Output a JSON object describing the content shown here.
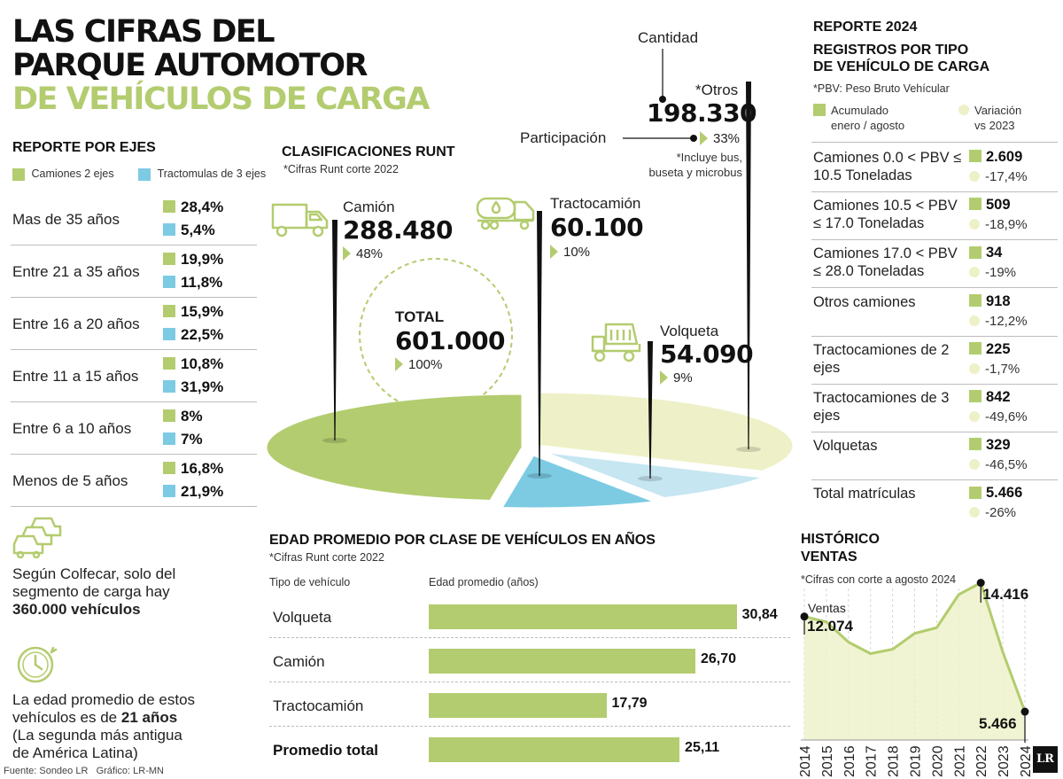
{
  "title": {
    "line1": "LAS CIFRAS DEL",
    "line2": "PARQUE AUTOMOTOR",
    "line3": "DE VEHÍCULOS DE CARGA"
  },
  "colors": {
    "green": "#b3cc6f",
    "blue": "#7ccbe3",
    "light_green": "#eef1c7",
    "light_blue": "#c6e6f1"
  },
  "report_axles": {
    "title": "REPORTE POR EJES",
    "legend": [
      "Camiones 2 ejes",
      "Tractomulas de 3 ejes"
    ],
    "rows": [
      {
        "label": "Mas de 35 años",
        "a": "28,4%",
        "b": "5,4%"
      },
      {
        "label": "Entre 21 a 35 años",
        "a": "19,9%",
        "b": "11,8%"
      },
      {
        "label": "Entre 16 a 20 años",
        "a": "15,9%",
        "b": "22,5%"
      },
      {
        "label": "Entre 11 a 15 años",
        "a": "10,8%",
        "b": "31,9%"
      },
      {
        "label": "Entre 6 a 10 años",
        "a": "8%",
        "b": "7%"
      },
      {
        "label": "Menos de 5 años",
        "a": "16,8%",
        "b": "21,9%"
      }
    ]
  },
  "facts": {
    "colfecar_1": "Según Colfecar, solo del",
    "colfecar_2": "segmento de carga hay",
    "colfecar_3": "360.000 vehículos",
    "age_1": "La edad promedio de estos",
    "age_2": "vehículos es de",
    "age_3": "21 años",
    "age_4": "(La segunda más antigua",
    "age_5": "de América Latina)",
    "icon_cars": "cars-icon",
    "icon_clock": "clock-icon"
  },
  "source": "Fuente: Sondeo LR   Gráfico: LR-MN",
  "runt": {
    "title": "CLASIFICACIONES RUNT",
    "note": "*Cifras Runt corte 2022",
    "total_label": "TOTAL",
    "total_value": "601.000",
    "total_pct": "100%",
    "cantidad_label": "Cantidad",
    "participacion_label": "Participación",
    "otros_note_1": "*Incluye bus,",
    "otros_note_2": "buseta y microbus"
  },
  "registry": {
    "title_1": "REPORTE 2024",
    "title_2": "REGISTROS POR TIPO",
    "title_3": "DE VEHÍCULO DE CARGA",
    "note": "*PBV: Peso Bruto Vehícular",
    "legend_a_1": "Acumulado",
    "legend_a_2": "enero / agosto",
    "legend_b_1": "Variación",
    "legend_b_2": "vs 2023",
    "rows": [
      {
        "label": "Camiones 0.0 < PBV ≤ 10.5 Toneladas",
        "value": "2.609",
        "var": "-17,4%"
      },
      {
        "label": "Camiones 10.5 < PBV ≤ 17.0 Toneladas",
        "value": "509",
        "var": "-18,9%"
      },
      {
        "label": "Camiones 17.0 < PBV ≤ 28.0 Toneladas",
        "value": "34",
        "var": "-19%"
      },
      {
        "label": "Otros camiones",
        "value": "918",
        "var": "-12,2%"
      },
      {
        "label": "Tractocamiones de 2 ejes",
        "value": "225",
        "var": "-1,7%"
      },
      {
        "label": "Tractocamiones de 3 ejes",
        "value": "842",
        "var": "-49,6%"
      },
      {
        "label": "Volquetas",
        "value": "329",
        "var": "-46,5%"
      },
      {
        "label": "Total matrículas",
        "value": "5.466",
        "var": "-26%"
      }
    ]
  },
  "age_section": {
    "title": "EDAD PROMEDIO POR CLASE DE VEHÍCULOS EN AÑOS",
    "note": "*Cifras Runt corte 2022",
    "col_a": "Tipo de vehículo",
    "col_b": "Edad promedio (años)"
  },
  "sales_section": {
    "title_1": "HISTÓRICO",
    "title_2": "VENTAS",
    "note": "*Cifras con corte a agosto 2024",
    "ventas_label": "Ventas"
  },
  "chart_data": [
    {
      "type": "pie",
      "title": "CLASIFICACIONES RUNT",
      "total": 601000,
      "slices": [
        {
          "name": "Camión",
          "value": 288480,
          "value_label": "288.480",
          "pct_label": "48%",
          "pct": 48,
          "color": "#b3cc6f",
          "icon": "truck-icon"
        },
        {
          "name": "Tractocamión",
          "value": 60100,
          "value_label": "60.100",
          "pct_label": "10%",
          "pct": 10,
          "color": "#7ccbe3",
          "icon": "tanker-truck-icon"
        },
        {
          "name": "Volqueta",
          "value": 54090,
          "value_label": "54.090",
          "pct_label": "9%",
          "pct": 9,
          "color": "#c6e6f1",
          "icon": "dump-truck-icon"
        },
        {
          "name": "*Otros",
          "value": 198330,
          "value_label": "198.330",
          "pct_label": "33%",
          "pct": 33,
          "color": "#eef1c7"
        }
      ]
    },
    {
      "type": "bar",
      "title": "EDAD PROMEDIO POR CLASE DE VEHÍCULOS EN AÑOS",
      "xlim": [
        0,
        33
      ],
      "categories": [
        "Volqueta",
        "Camión",
        "Tractocamión",
        "Promedio total"
      ],
      "values": [
        30.84,
        26.7,
        17.79,
        25.11
      ],
      "value_labels": [
        "30,84",
        "26,70",
        "17,79",
        "25,11"
      ]
    },
    {
      "type": "area",
      "title": "HISTÓRICO VENTAS",
      "x": [
        "2014",
        "2015",
        "2016",
        "2017",
        "2018",
        "2019",
        "2020",
        "2021",
        "2022",
        "2023",
        "2024"
      ],
      "values": [
        12074,
        11700,
        10300,
        9500,
        9800,
        10900,
        11300,
        13600,
        14416,
        9600,
        5466
      ],
      "labels": [
        {
          "index": 0,
          "text": "12.074"
        },
        {
          "index": 8,
          "text": "14.416"
        },
        {
          "index": 10,
          "text": "5.466"
        }
      ],
      "ylim": [
        3500,
        15500
      ]
    }
  ]
}
